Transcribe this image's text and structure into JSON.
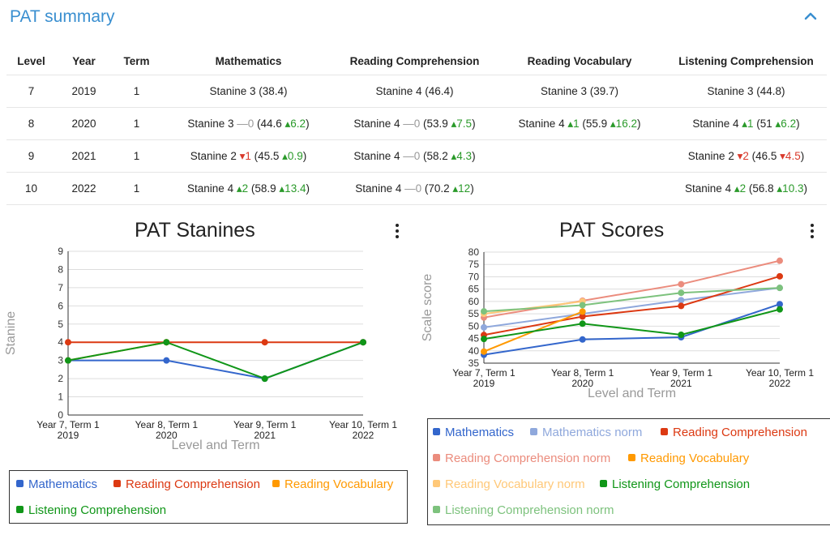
{
  "header": {
    "title": "PAT summary"
  },
  "table": {
    "columns": [
      "Level",
      "Year",
      "Term",
      "Mathematics",
      "Reading Comprehension",
      "Reading Vocabulary",
      "Listening Comprehension"
    ],
    "rows": [
      {
        "level": "7",
        "year": "2019",
        "term": "1",
        "cells": [
          {
            "main": "Stanine 3 (38.4)"
          },
          {
            "main": "Stanine 4 (46.4)"
          },
          {
            "main": "Stanine 3 (39.7)"
          },
          {
            "main": "Stanine 3 (44.8)"
          }
        ]
      },
      {
        "level": "8",
        "year": "2020",
        "term": "1",
        "cells": [
          {
            "pre": "Stanine 3 ",
            "d1": "—0",
            "d1dir": "flat",
            "mid": "(44.6 ",
            "d2": "▴6.2",
            "d2dir": "up",
            "post": ")"
          },
          {
            "pre": "Stanine 4 ",
            "d1": "—0",
            "d1dir": "flat",
            "mid": "(53.9 ",
            "d2": "▴7.5",
            "d2dir": "up",
            "post": ")"
          },
          {
            "pre": "Stanine 4 ",
            "d1": "▴1",
            "d1dir": "up",
            "mid": "(55.9 ",
            "d2": "▴16.2",
            "d2dir": "up",
            "post": ")"
          },
          {
            "pre": "Stanine 4 ",
            "d1": "▴1",
            "d1dir": "up",
            "mid": "(51 ",
            "d2": "▴6.2",
            "d2dir": "up",
            "post": ")"
          }
        ]
      },
      {
        "level": "9",
        "year": "2021",
        "term": "1",
        "cells": [
          {
            "pre": "Stanine 2 ",
            "d1": "▾1",
            "d1dir": "down",
            "mid": "(45.5 ",
            "d2": "▴0.9",
            "d2dir": "up",
            "post": ")"
          },
          {
            "pre": "Stanine 4 ",
            "d1": "—0",
            "d1dir": "flat",
            "mid": "(58.2 ",
            "d2": "▴4.3",
            "d2dir": "up",
            "post": ")"
          },
          {
            "main": ""
          },
          {
            "pre": "Stanine 2 ",
            "d1": "▾2",
            "d1dir": "down",
            "mid": "(46.5 ",
            "d2": "▾4.5",
            "d2dir": "down",
            "post": ")"
          }
        ]
      },
      {
        "level": "10",
        "year": "2022",
        "term": "1",
        "cells": [
          {
            "pre": "Stanine 4 ",
            "d1": "▴2",
            "d1dir": "up",
            "mid": "(58.9 ",
            "d2": "▴13.4",
            "d2dir": "up",
            "post": ")"
          },
          {
            "pre": "Stanine 4 ",
            "d1": "—0",
            "d1dir": "flat",
            "mid": "(70.2 ",
            "d2": "▴12",
            "d2dir": "up",
            "post": ")"
          },
          {
            "main": ""
          },
          {
            "pre": "Stanine 4 ",
            "d1": "▴2",
            "d1dir": "up",
            "mid": "(56.8 ",
            "d2": "▴10.3",
            "d2dir": "up",
            "post": ")"
          }
        ]
      }
    ]
  },
  "chart_data": [
    {
      "type": "line",
      "title": "PAT Stanines",
      "xlabel": "Level and Term",
      "ylabel": "Stanine",
      "categories": [
        "Year 7, Term 1|2019",
        "Year 8, Term 1|2020",
        "Year 9, Term 1|2021",
        "Year 10, Term 1|2022"
      ],
      "ylim": [
        0,
        9
      ],
      "yticks": [
        0,
        1,
        2,
        3,
        4,
        5,
        6,
        7,
        8,
        9
      ],
      "grid": true,
      "legend_position": "bottom",
      "series": [
        {
          "name": "Mathematics",
          "color": "#3366cc",
          "values": [
            3,
            3,
            2,
            4
          ]
        },
        {
          "name": "Reading Comprehension",
          "color": "#dc3912",
          "values": [
            4,
            4,
            4,
            4
          ]
        },
        {
          "name": "Reading Vocabulary",
          "color": "#ff9900",
          "values": [
            3,
            4,
            null,
            null
          ]
        },
        {
          "name": "Listening Comprehension",
          "color": "#109618",
          "values": [
            3,
            4,
            2,
            4
          ]
        }
      ]
    },
    {
      "type": "line",
      "title": "PAT Scores",
      "xlabel": "Level and Term",
      "ylabel": "Scale score",
      "categories": [
        "Year 7, Term 1|2019",
        "Year 8, Term 1|2020",
        "Year 9, Term 1|2021",
        "Year 10, Term 1|2022"
      ],
      "ylim": [
        35,
        80
      ],
      "yticks": [
        35,
        40,
        45,
        50,
        55,
        60,
        65,
        70,
        75,
        80
      ],
      "grid": true,
      "legend_position": "bottom",
      "series": [
        {
          "name": "Mathematics",
          "color": "#3366cc",
          "values": [
            38.4,
            44.6,
            45.5,
            58.9
          ]
        },
        {
          "name": "Mathematics norm",
          "color": "#8fa8dc",
          "values": [
            49.5,
            55.0,
            60.5,
            65.5
          ]
        },
        {
          "name": "Reading Comprehension",
          "color": "#dc3912",
          "values": [
            46.4,
            53.9,
            58.2,
            70.2
          ]
        },
        {
          "name": "Reading Comprehension norm",
          "color": "#eb8c7d",
          "values": [
            53.5,
            60.3,
            67.0,
            76.5
          ]
        },
        {
          "name": "Reading Vocabulary",
          "color": "#ff9900",
          "values": [
            39.7,
            55.9,
            null,
            null
          ]
        },
        {
          "name": "Reading Vocabulary norm",
          "color": "#ffc878",
          "values": [
            55.0,
            60.0,
            null,
            null
          ]
        },
        {
          "name": "Listening Comprehension",
          "color": "#109618",
          "values": [
            44.8,
            51,
            46.5,
            56.8
          ]
        },
        {
          "name": "Listening Comprehension norm",
          "color": "#7dc27d",
          "values": [
            56.0,
            58.5,
            63.5,
            65.5
          ]
        }
      ]
    }
  ]
}
